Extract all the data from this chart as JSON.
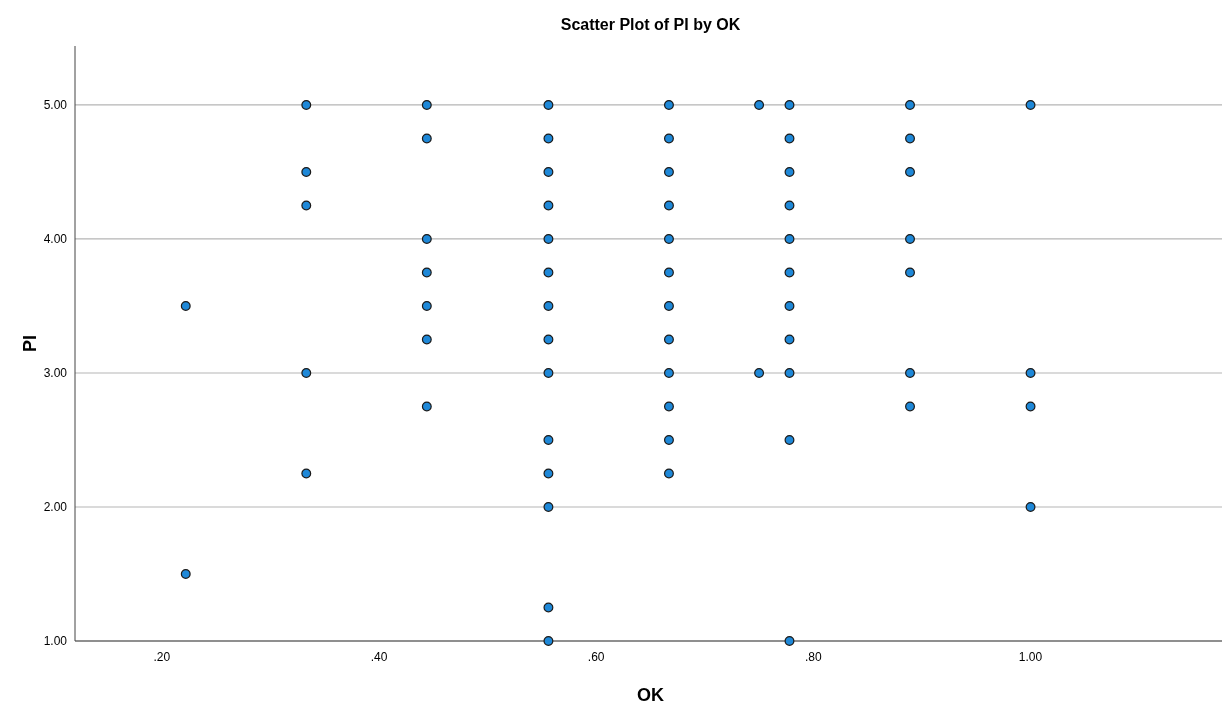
{
  "chart_data": {
    "type": "scatter",
    "title": "Scatter Plot of PI by OK",
    "xlabel": "OK",
    "ylabel": "PI",
    "x": [
      0.222,
      0.222,
      0.333,
      0.333,
      0.333,
      0.333,
      0.333,
      0.444,
      0.444,
      0.444,
      0.444,
      0.444,
      0.444,
      0.444,
      0.556,
      0.556,
      0.556,
      0.556,
      0.556,
      0.556,
      0.556,
      0.556,
      0.556,
      0.556,
      0.556,
      0.556,
      0.556,
      0.556,
      0.667,
      0.667,
      0.667,
      0.667,
      0.667,
      0.667,
      0.667,
      0.667,
      0.667,
      0.667,
      0.667,
      0.667,
      0.75,
      0.75,
      0.778,
      0.778,
      0.778,
      0.778,
      0.778,
      0.778,
      0.778,
      0.778,
      0.778,
      0.778,
      0.778,
      0.889,
      0.889,
      0.889,
      0.889,
      0.889,
      0.889,
      0.889,
      1.0,
      1.0,
      1.0,
      1.0
    ],
    "values": [
      3.5,
      1.5,
      5,
      4.5,
      4.25,
      3,
      2.25,
      5,
      4.75,
      4,
      3.75,
      3.5,
      3.25,
      2.75,
      5,
      4.75,
      4.5,
      4.25,
      4,
      3.75,
      3.5,
      3.25,
      3,
      2.5,
      2.25,
      2,
      1.25,
      1,
      5,
      4.75,
      4.5,
      4.25,
      4,
      3.75,
      3.5,
      3.25,
      3,
      2.75,
      2.5,
      2.25,
      5,
      3,
      5,
      4.75,
      4.5,
      4.25,
      4,
      3.75,
      3.5,
      3.25,
      3,
      2.5,
      1,
      5,
      4.75,
      4.5,
      4,
      3.75,
      3,
      2.75,
      5,
      3,
      2.75,
      2
    ],
    "color": "#1e88d8",
    "marker": "circle",
    "xlim": [
      0.12,
      1.18
    ],
    "xticks": [
      {
        "value": 0.2,
        "label": ".20"
      },
      {
        "value": 0.4,
        "label": ".40"
      },
      {
        "value": 0.6,
        "label": ".60"
      },
      {
        "value": 0.8,
        "label": ".80"
      },
      {
        "value": 1.0,
        "label": "1.00"
      }
    ],
    "ylim": [
      1,
      5.44
    ],
    "yticks": [
      {
        "value": 1,
        "label": "1.00"
      },
      {
        "value": 2,
        "label": "2.00"
      },
      {
        "value": 3,
        "label": "3.00"
      },
      {
        "value": 4,
        "label": "4.00"
      },
      {
        "value": 5,
        "label": "5.00"
      }
    ],
    "grid": "y"
  }
}
